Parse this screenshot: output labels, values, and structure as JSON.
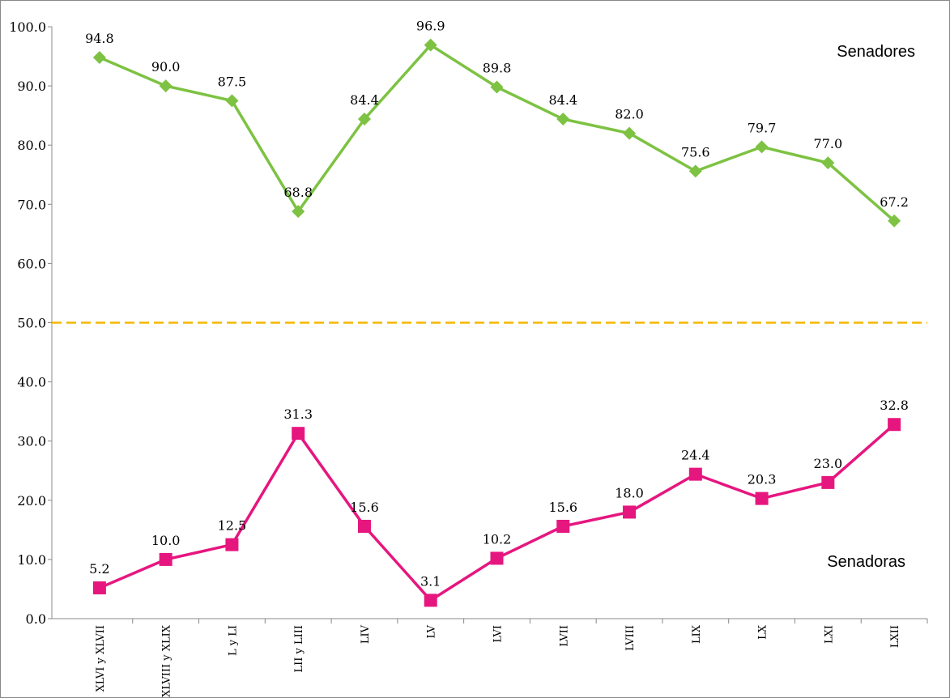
{
  "chart_data": {
    "type": "line",
    "categories": [
      "XLVI y XLVII",
      "XLVIII y XLIX",
      "L y LI",
      "LII y LIII",
      "LIV",
      "LV",
      "LVI",
      "LVII",
      "LVIII",
      "LIX",
      "LX",
      "LXI",
      "LXII"
    ],
    "series": [
      {
        "name": "Senadores",
        "color": "#7dc242",
        "marker": "diamond",
        "values": [
          94.8,
          90.0,
          87.5,
          68.8,
          84.4,
          96.9,
          89.8,
          84.4,
          82.0,
          75.6,
          79.7,
          77.0,
          67.2
        ],
        "value_labels": [
          "94.8",
          "90.0",
          "87.5",
          "68.8",
          "84.4",
          "96.9",
          "89.8",
          "84.4",
          "82.0",
          "75.6",
          "79.7",
          "77.0",
          "67.2"
        ]
      },
      {
        "name": "Senadoras",
        "color": "#e6167f",
        "marker": "square",
        "values": [
          5.2,
          10.0,
          12.5,
          31.3,
          15.6,
          3.1,
          10.2,
          15.6,
          18.0,
          24.4,
          20.3,
          23.0,
          32.8
        ],
        "value_labels": [
          "5.2",
          "10.0",
          "12.5",
          "31.3",
          "15.6",
          "3.1",
          "10.2",
          "15.6",
          "18.0",
          "24.4",
          "20.3",
          "23.0",
          "32.8"
        ]
      }
    ],
    "ylim": [
      0,
      100
    ],
    "yticks": [
      {
        "value": 0,
        "label": "0.0"
      },
      {
        "value": 10,
        "label": "10.0"
      },
      {
        "value": 20,
        "label": "20.0"
      },
      {
        "value": 30,
        "label": "30.0"
      },
      {
        "value": 40,
        "label": "40.0"
      },
      {
        "value": 50,
        "label": "50.0"
      },
      {
        "value": 60,
        "label": "60.0"
      },
      {
        "value": 70,
        "label": "70.0"
      },
      {
        "value": 80,
        "label": "80.0"
      },
      {
        "value": 90,
        "label": "90.0"
      },
      {
        "value": 100,
        "label": "100.0"
      }
    ],
    "reference_line": {
      "value": 50,
      "color": "#f5b800"
    },
    "grid": false
  }
}
